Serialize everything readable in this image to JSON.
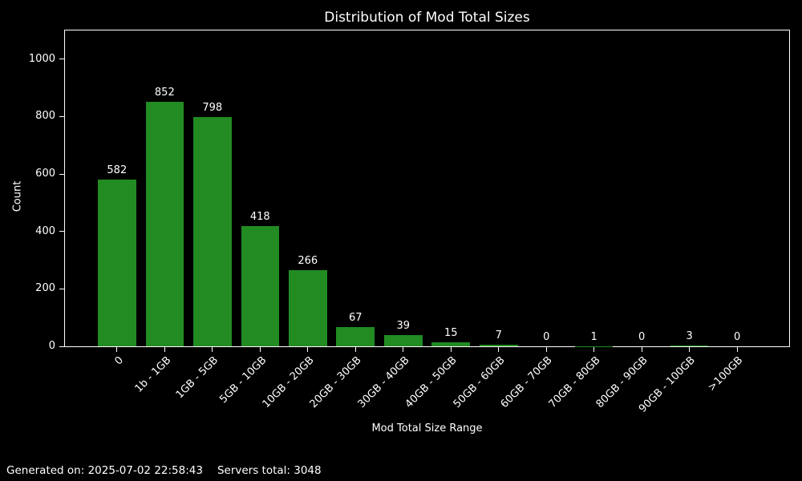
{
  "chart_data": {
    "type": "bar",
    "title": "Distribution of Mod Total Sizes",
    "xlabel": "Mod Total Size Range",
    "ylabel": "Count",
    "categories": [
      "0",
      "1b - 1GB",
      "1GB - 5GB",
      "5GB - 10GB",
      "10GB - 20GB",
      "20GB - 30GB",
      "30GB - 40GB",
      "40GB - 50GB",
      "50GB - 60GB",
      "60GB - 70GB",
      "70GB - 80GB",
      "80GB - 90GB",
      "90GB - 100GB",
      ">100GB"
    ],
    "values": [
      582,
      852,
      798,
      418,
      266,
      67,
      39,
      15,
      7,
      0,
      1,
      0,
      3,
      0
    ],
    "ylim": [
      0,
      1100
    ],
    "yticks": [
      0,
      200,
      400,
      600,
      800,
      1000
    ],
    "bar_color": "#228B22",
    "background_color": "#000000",
    "text_color": "#ffffff",
    "grid": false,
    "legend_position": "none",
    "bar_width_fraction": 0.8,
    "value_labels_shown": true
  },
  "footer": {
    "generated_text": "Generated on: 2025-07-02 22:58:43",
    "servers_total_text": "Servers total: 3048"
  }
}
